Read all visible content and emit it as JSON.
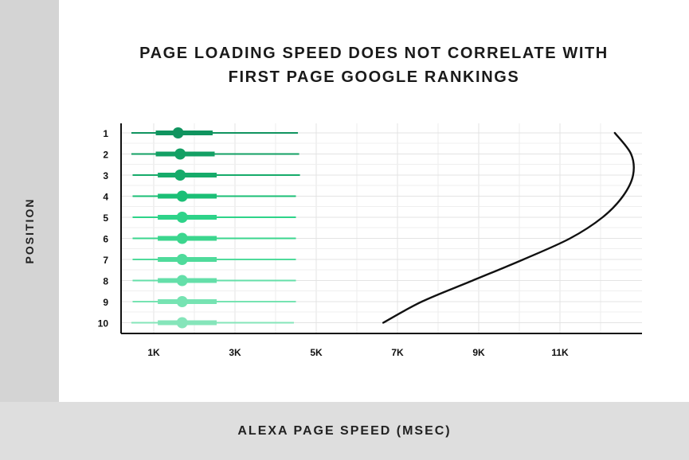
{
  "chart_data": {
    "type": "box-range",
    "title_lines": [
      "PAGE LOADING SPEED DOES NOT CORRELATE WITH",
      "FIRST PAGE GOOGLE RANKINGS"
    ],
    "xlabel": "ALEXA PAGE SPEED (MSEC)",
    "ylabel": "POSITION",
    "x_ticks": [
      "1K",
      "3K",
      "5K",
      "7K",
      "9K",
      "11K"
    ],
    "x_tick_values": [
      1000,
      3000,
      5000,
      7000,
      9000,
      11000
    ],
    "xlim": [
      0,
      13000
    ],
    "categories": [
      "1",
      "2",
      "3",
      "4",
      "5",
      "6",
      "7",
      "8",
      "9",
      "10"
    ],
    "series": [
      {
        "position": "1",
        "whisker_low": 450,
        "q1": 1050,
        "median": 1600,
        "q3": 2450,
        "whisker_high": 4550,
        "color": "#10945f"
      },
      {
        "position": "2",
        "whisker_low": 450,
        "q1": 1050,
        "median": 1650,
        "q3": 2500,
        "whisker_high": 4580,
        "color": "#13a064"
      },
      {
        "position": "3",
        "whisker_low": 480,
        "q1": 1100,
        "median": 1650,
        "q3": 2550,
        "whisker_high": 4600,
        "color": "#16ab6a"
      },
      {
        "position": "4",
        "whisker_low": 480,
        "q1": 1100,
        "median": 1700,
        "q3": 2550,
        "whisker_high": 4500,
        "color": "#1bbf76"
      },
      {
        "position": "5",
        "whisker_low": 480,
        "q1": 1100,
        "median": 1700,
        "q3": 2550,
        "whisker_high": 4500,
        "color": "#2ed389"
      },
      {
        "position": "6",
        "whisker_low": 480,
        "q1": 1100,
        "median": 1700,
        "q3": 2550,
        "whisker_high": 4500,
        "color": "#3bd68e"
      },
      {
        "position": "7",
        "whisker_low": 480,
        "q1": 1100,
        "median": 1700,
        "q3": 2550,
        "whisker_high": 4500,
        "color": "#4fdb9b"
      },
      {
        "position": "8",
        "whisker_low": 480,
        "q1": 1100,
        "median": 1700,
        "q3": 2550,
        "whisker_high": 4500,
        "color": "#64dfa9"
      },
      {
        "position": "9",
        "whisker_low": 480,
        "q1": 1100,
        "median": 1700,
        "q3": 2550,
        "whisker_high": 4500,
        "color": "#76e3b2"
      },
      {
        "position": "10",
        "whisker_low": 450,
        "q1": 1100,
        "median": 1700,
        "q3": 2550,
        "whisker_high": 4450,
        "color": "#85e5ba"
      }
    ],
    "trend_curve": [
      {
        "x": 6650,
        "position": 10
      },
      {
        "x": 7600,
        "position": 9
      },
      {
        "x": 8850,
        "position": 8
      },
      {
        "x": 10100,
        "position": 7
      },
      {
        "x": 11250,
        "position": 6
      },
      {
        "x": 12050,
        "position": 5
      },
      {
        "x": 12550,
        "position": 4
      },
      {
        "x": 12800,
        "position": 3
      },
      {
        "x": 12750,
        "position": 2
      },
      {
        "x": 12350,
        "position": 1
      }
    ],
    "grid": true
  }
}
